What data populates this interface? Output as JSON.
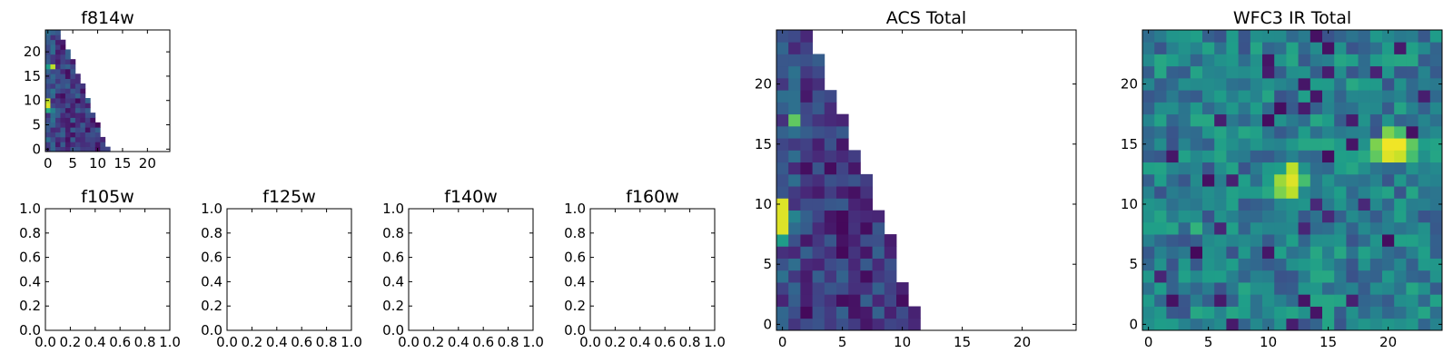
{
  "colormap": [
    "#440154",
    "#482878",
    "#3e4a89",
    "#31688e",
    "#26828e",
    "#1f9e89",
    "#35b779",
    "#6ece58",
    "#b5de2b",
    "#fde725"
  ],
  "chart_data": [
    {
      "id": "f814w",
      "type": "heatmap",
      "title": "f814w",
      "xlim": [
        -0.5,
        24.5
      ],
      "ylim": [
        -0.5,
        24.5
      ],
      "xticks": [
        0,
        5,
        10,
        15,
        20
      ],
      "yticks": [
        0,
        5,
        10,
        15,
        20
      ],
      "xtick_labels": [
        "0",
        "5",
        "10",
        "15",
        "20"
      ],
      "ytick_labels": [
        "0",
        "5",
        "10",
        "15",
        "20"
      ],
      "grid": false,
      "footprint_max_col": [
        12,
        11,
        11,
        10,
        10,
        10,
        9,
        9,
        8,
        8,
        8,
        7,
        7,
        7,
        6,
        6,
        5,
        5,
        5,
        4,
        4,
        3,
        3,
        2,
        2
      ],
      "bright_cells": [
        [
          0,
          9,
          0.95
        ],
        [
          0,
          10,
          0.9
        ],
        [
          0,
          8,
          0.6
        ],
        [
          1,
          8,
          0.45
        ],
        [
          1,
          17,
          0.9
        ],
        [
          0,
          17,
          0.55
        ]
      ]
    },
    {
      "id": "f105w",
      "type": "heatmap",
      "title": "f105w",
      "empty": true,
      "xlim": [
        0,
        1
      ],
      "ylim": [
        0,
        1
      ],
      "xticks": [
        0,
        0.2,
        0.4,
        0.6,
        0.8,
        1.0
      ],
      "yticks": [
        0,
        0.2,
        0.4,
        0.6,
        0.8,
        1.0
      ],
      "xtick_labels": [
        "0.0",
        "0.2",
        "0.4",
        "0.6",
        "0.8",
        "1.0"
      ],
      "ytick_labels": [
        "0.0",
        "0.2",
        "0.4",
        "0.6",
        "0.8",
        "1.0"
      ],
      "grid": false
    },
    {
      "id": "f125w",
      "type": "heatmap",
      "title": "f125w",
      "empty": true,
      "xlim": [
        0,
        1
      ],
      "ylim": [
        0,
        1
      ],
      "xticks": [
        0,
        0.2,
        0.4,
        0.6,
        0.8,
        1.0
      ],
      "yticks": [
        0,
        0.2,
        0.4,
        0.6,
        0.8,
        1.0
      ],
      "xtick_labels": [
        "0.0",
        "0.2",
        "0.4",
        "0.6",
        "0.8",
        "1.0"
      ],
      "ytick_labels": [
        "0.0",
        "0.2",
        "0.4",
        "0.6",
        "0.8",
        "1.0"
      ],
      "grid": false
    },
    {
      "id": "f140w",
      "type": "heatmap",
      "title": "f140w",
      "empty": true,
      "xlim": [
        0,
        1
      ],
      "ylim": [
        0,
        1
      ],
      "xticks": [
        0,
        0.2,
        0.4,
        0.6,
        0.8,
        1.0
      ],
      "yticks": [
        0,
        0.2,
        0.4,
        0.6,
        0.8,
        1.0
      ],
      "xtick_labels": [
        "0.0",
        "0.2",
        "0.4",
        "0.6",
        "0.8",
        "1.0"
      ],
      "ytick_labels": [
        "0.0",
        "0.2",
        "0.4",
        "0.6",
        "0.8",
        "1.0"
      ],
      "grid": false
    },
    {
      "id": "f160w",
      "type": "heatmap",
      "title": "f160w",
      "empty": true,
      "xlim": [
        0,
        1
      ],
      "ylim": [
        0,
        1
      ],
      "xticks": [
        0,
        0.2,
        0.4,
        0.6,
        0.8,
        1.0
      ],
      "yticks": [
        0,
        0.2,
        0.4,
        0.6,
        0.8,
        1.0
      ],
      "xtick_labels": [
        "0.0",
        "0.2",
        "0.4",
        "0.6",
        "0.8",
        "1.0"
      ],
      "ytick_labels": [
        "0.0",
        "0.2",
        "0.4",
        "0.6",
        "0.8",
        "1.0"
      ],
      "grid": false
    },
    {
      "id": "acs-total",
      "type": "heatmap",
      "title": "ACS Total",
      "xlim": [
        -0.5,
        24.5
      ],
      "ylim": [
        -0.5,
        24.5
      ],
      "xticks": [
        0,
        5,
        10,
        15,
        20
      ],
      "yticks": [
        0,
        5,
        10,
        15,
        20
      ],
      "xtick_labels": [
        "0",
        "5",
        "10",
        "15",
        "20"
      ],
      "ytick_labels": [
        "0",
        "5",
        "10",
        "15",
        "20"
      ],
      "grid": false,
      "footprint_max_col": [
        11,
        11,
        10,
        10,
        9,
        9,
        9,
        9,
        8,
        8,
        7,
        7,
        7,
        6,
        6,
        5,
        5,
        5,
        4,
        4,
        3,
        3,
        3,
        2,
        2
      ],
      "bright_cells": [
        [
          0,
          8,
          0.95
        ],
        [
          0,
          9,
          0.95
        ],
        [
          0,
          10,
          0.95
        ],
        [
          0,
          7,
          0.55
        ],
        [
          1,
          9,
          0.45
        ],
        [
          1,
          17,
          0.75
        ],
        [
          0,
          18,
          0.3
        ]
      ]
    },
    {
      "id": "wfc3-ir-total",
      "type": "heatmap",
      "title": "WFC3 IR Total",
      "xlim": [
        -0.5,
        24.5
      ],
      "ylim": [
        -0.5,
        24.5
      ],
      "xticks": [
        0,
        5,
        10,
        15,
        20
      ],
      "yticks": [
        0,
        5,
        10,
        15,
        20
      ],
      "xtick_labels": [
        "0",
        "5",
        "10",
        "15",
        "20"
      ],
      "ytick_labels": [
        "0",
        "5",
        "10",
        "15",
        "20"
      ],
      "grid": false,
      "full": true,
      "bright_cells": [
        [
          20,
          15,
          0.98
        ],
        [
          21,
          15,
          0.98
        ],
        [
          20,
          14,
          0.95
        ],
        [
          21,
          14,
          0.92
        ],
        [
          19,
          15,
          0.8
        ],
        [
          22,
          15,
          0.75
        ],
        [
          20,
          16,
          0.8
        ],
        [
          21,
          16,
          0.7
        ],
        [
          19,
          14,
          0.75
        ],
        [
          22,
          14,
          0.7
        ],
        [
          18,
          14,
          0.6
        ],
        [
          17,
          14,
          0.55
        ],
        [
          12,
          12,
          0.95
        ],
        [
          12,
          13,
          0.9
        ],
        [
          11,
          12,
          0.85
        ],
        [
          12,
          11,
          0.9
        ],
        [
          11,
          11,
          0.8
        ],
        [
          13,
          12,
          0.7
        ],
        [
          10,
          11,
          0.6
        ],
        [
          10,
          12,
          0.55
        ],
        [
          11,
          13,
          0.55
        ],
        [
          4,
          8,
          0.65
        ],
        [
          16,
          13,
          0.55
        ]
      ]
    }
  ]
}
